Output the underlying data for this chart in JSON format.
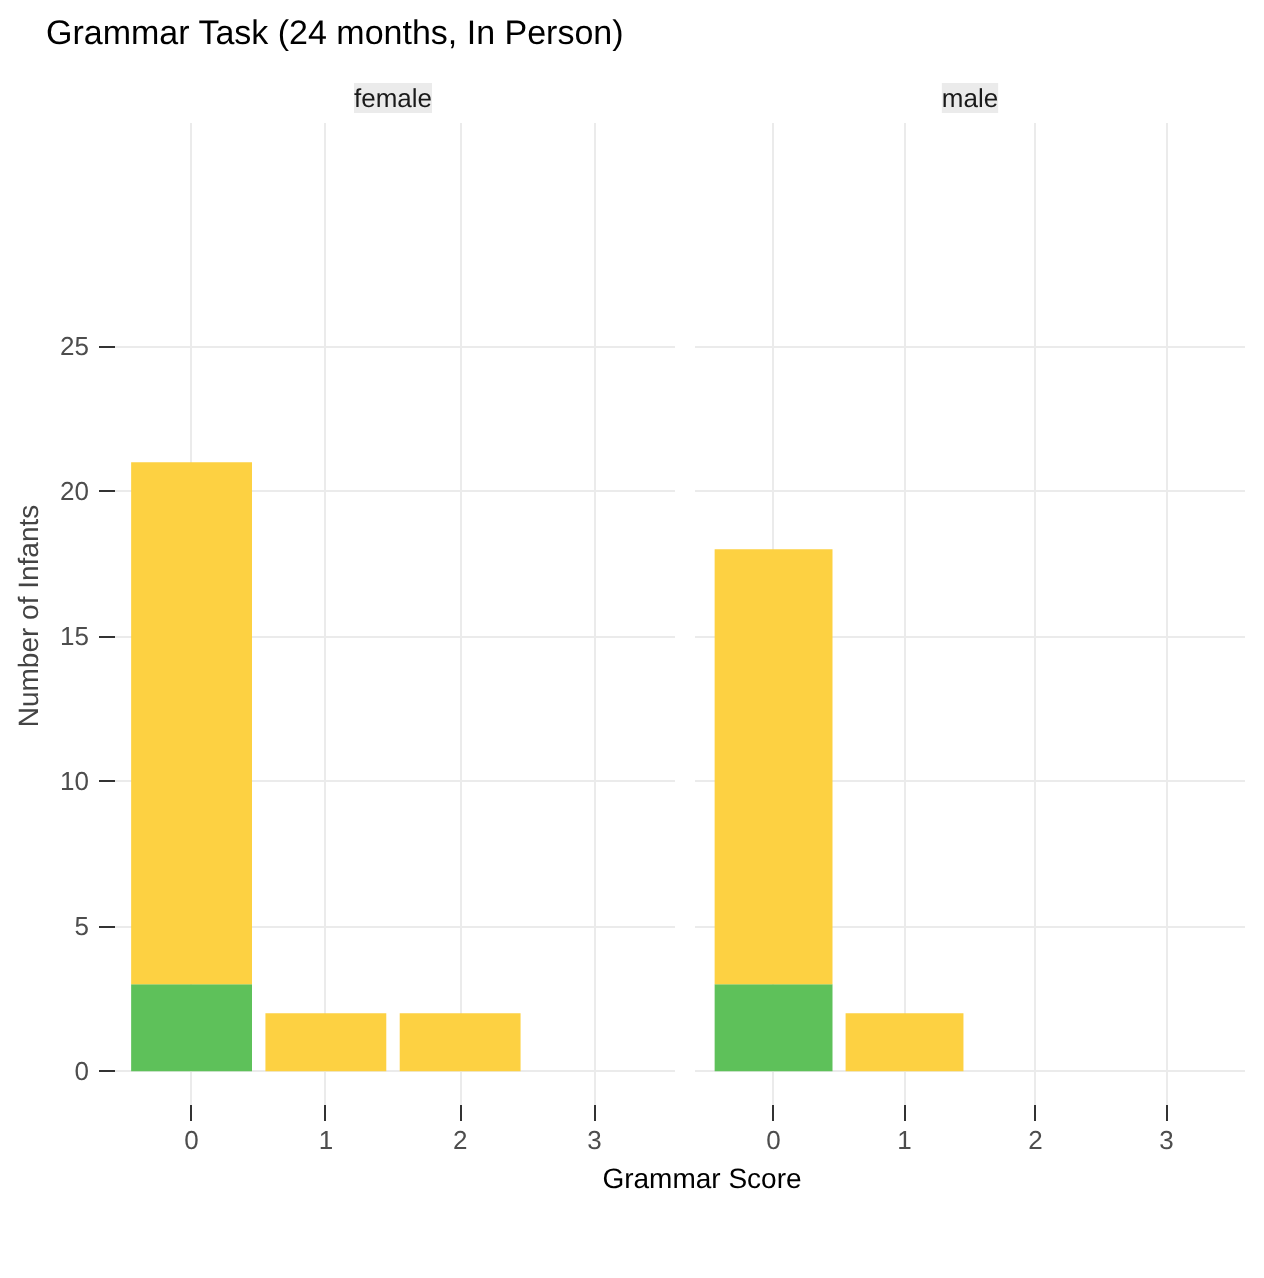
{
  "chart_data": [
    {
      "type": "bar",
      "title": "Grammar Task (24 months, In Person)",
      "subtitle": "female",
      "xlabel": "Grammar Score",
      "ylabel": "Number of Infants",
      "stacked": true,
      "x": [
        0,
        1,
        2
      ],
      "xlim": [
        -0.6,
        3.6
      ],
      "xticks": [
        0,
        1,
        2,
        3
      ],
      "ylim": [
        -1.3,
        32.7
      ],
      "yticks": [
        0,
        5,
        10,
        15,
        20,
        25
      ],
      "grid": true,
      "series": [
        {
          "color": "#5ec15a",
          "values": [
            3,
            null,
            null
          ]
        },
        {
          "color": "#fdd142",
          "values": [
            18,
            2,
            2
          ]
        }
      ]
    },
    {
      "type": "bar",
      "subtitle": "male",
      "stacked": true,
      "x": [
        0,
        1
      ],
      "xlim": [
        -0.6,
        3.6
      ],
      "xticks": [
        0,
        1,
        2,
        3
      ],
      "ylim": [
        -1.3,
        32.7
      ],
      "yticks": [
        0,
        5,
        10,
        15,
        20,
        25
      ],
      "grid": true,
      "tick_labels": "x",
      "series": [
        {
          "color": "#5ec15a",
          "values": [
            3,
            null
          ]
        },
        {
          "color": "#fdd142",
          "values": [
            15,
            2
          ]
        }
      ]
    }
  ]
}
